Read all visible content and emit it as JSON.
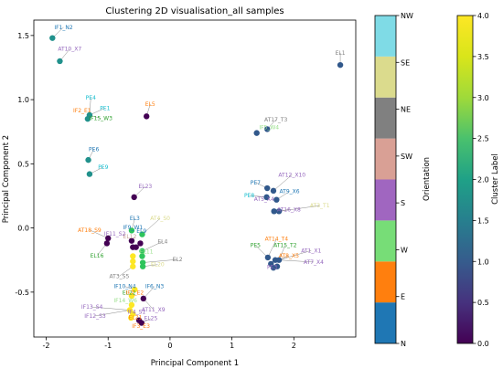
{
  "chart_data": {
    "type": "scatter",
    "title": "Clustering 2D visualisation_all samples",
    "xlabel": "Principal Component 1",
    "ylabel": "Principal Component 2",
    "xlim": [
      -2.2,
      3.0
    ],
    "ylim": [
      -0.85,
      1.62
    ],
    "xticks": [
      "-2",
      "-1",
      "0",
      "1",
      "2"
    ],
    "xtick_values": [
      -2,
      -1,
      0,
      1,
      2
    ],
    "yticks": [
      "-0.5",
      "0.0",
      "0.5",
      "1.0",
      "1.5"
    ],
    "ytick_values": [
      -0.5,
      0.0,
      0.5,
      1.0,
      1.5
    ],
    "grid": false,
    "points": [
      {
        "x": -1.9,
        "y": 1.48,
        "cluster": 2
      },
      {
        "x": -1.78,
        "y": 1.3,
        "cluster": 2
      },
      {
        "x": 2.75,
        "y": 1.27,
        "cluster": 1
      },
      {
        "x": -1.3,
        "y": 0.88,
        "cluster": 2
      },
      {
        "x": -1.33,
        "y": 0.85,
        "cluster": 2
      },
      {
        "x": -0.38,
        "y": 0.87,
        "cluster": 0
      },
      {
        "x": 1.4,
        "y": 0.74,
        "cluster": 1
      },
      {
        "x": 1.57,
        "y": 0.77,
        "cluster": 1
      },
      {
        "x": -1.32,
        "y": 0.53,
        "cluster": 2
      },
      {
        "x": -1.3,
        "y": 0.42,
        "cluster": 2
      },
      {
        "x": -0.58,
        "y": 0.24,
        "cluster": 0
      },
      {
        "x": 1.57,
        "y": 0.31,
        "cluster": 1
      },
      {
        "x": 1.67,
        "y": 0.29,
        "cluster": 1
      },
      {
        "x": 1.56,
        "y": 0.24,
        "cluster": 1
      },
      {
        "x": 1.72,
        "y": 0.22,
        "cluster": 1
      },
      {
        "x": 1.68,
        "y": 0.13,
        "cluster": 1
      },
      {
        "x": 1.76,
        "y": 0.13,
        "cluster": 1
      },
      {
        "x": -0.62,
        "y": -0.02,
        "cluster": 3
      },
      {
        "x": -0.45,
        "y": -0.05,
        "cluster": 3
      },
      {
        "x": -1.0,
        "y": -0.08,
        "cluster": 0
      },
      {
        "x": -1.02,
        "y": -0.12,
        "cluster": 0
      },
      {
        "x": -0.62,
        "y": -0.1,
        "cluster": 0
      },
      {
        "x": -0.6,
        "y": -0.15,
        "cluster": 0
      },
      {
        "x": -0.55,
        "y": -0.15,
        "cluster": 0
      },
      {
        "x": -0.48,
        "y": -0.12,
        "cluster": 0
      },
      {
        "x": -0.45,
        "y": -0.18,
        "cluster": 3
      },
      {
        "x": -0.6,
        "y": -0.22,
        "cluster": 4
      },
      {
        "x": -0.6,
        "y": -0.26,
        "cluster": 4
      },
      {
        "x": -0.6,
        "y": -0.3,
        "cluster": 4
      },
      {
        "x": -0.45,
        "y": -0.22,
        "cluster": 3
      },
      {
        "x": -0.44,
        "y": -0.27,
        "cluster": 3
      },
      {
        "x": -0.44,
        "y": -0.3,
        "cluster": 3
      },
      {
        "x": 1.58,
        "y": -0.23,
        "cluster": 1
      },
      {
        "x": 1.63,
        "y": -0.28,
        "cluster": 1
      },
      {
        "x": 1.7,
        "y": -0.25,
        "cluster": 1
      },
      {
        "x": 1.76,
        "y": -0.25,
        "cluster": 1
      },
      {
        "x": 1.67,
        "y": -0.31,
        "cluster": 1
      },
      {
        "x": 1.73,
        "y": -0.3,
        "cluster": 1
      },
      {
        "x": -0.57,
        "y": -0.48,
        "cluster": 4
      },
      {
        "x": -0.62,
        "y": -0.53,
        "cluster": 4
      },
      {
        "x": -0.62,
        "y": -0.6,
        "cluster": 4
      },
      {
        "x": -0.43,
        "y": -0.55,
        "cluster": 0
      },
      {
        "x": -0.65,
        "y": -0.64,
        "cluster": 4
      },
      {
        "x": -0.6,
        "y": -0.67,
        "cluster": 4
      },
      {
        "x": -0.63,
        "y": -0.7,
        "cluster": 4
      },
      {
        "x": -0.5,
        "y": -0.72,
        "cluster": 0
      },
      {
        "x": -0.46,
        "y": -0.74,
        "cluster": 0
      }
    ],
    "labels": [
      {
        "text": "IF1_N2",
        "x": -1.72,
        "y": 1.55,
        "color": "#1f77b4"
      },
      {
        "text": "AT10_X7",
        "x": -1.62,
        "y": 1.38,
        "color": "#9467bd"
      },
      {
        "text": "EL1",
        "x": 2.75,
        "y": 1.35,
        "color": "#7f7f7f"
      },
      {
        "text": "PE4",
        "x": -1.28,
        "y": 1.0,
        "color": "#17becf"
      },
      {
        "text": "PE1",
        "x": -1.05,
        "y": 0.92,
        "color": "#17becf"
      },
      {
        "text": "EL5",
        "x": -0.32,
        "y": 0.95,
        "color": "#ff7f0e"
      },
      {
        "text": "IF2_E1",
        "x": -1.42,
        "y": 0.9,
        "color": "#ff7f0e"
      },
      {
        "text": "IF15_W3",
        "x": -1.12,
        "y": 0.84,
        "color": "#2ca02c"
      },
      {
        "text": "AT17_T3",
        "x": 1.71,
        "y": 0.83,
        "color": "#7f7f7f"
      },
      {
        "text": "IF5_W4",
        "x": 1.6,
        "y": 0.77,
        "color": "#98df8a"
      },
      {
        "text": "PE6",
        "x": -1.23,
        "y": 0.6,
        "color": "#1f77b4"
      },
      {
        "text": "PE9",
        "x": -1.08,
        "y": 0.46,
        "color": "#17becf"
      },
      {
        "text": "EL23",
        "x": -0.4,
        "y": 0.31,
        "color": "#9467bd"
      },
      {
        "text": "AT12_X10",
        "x": 1.97,
        "y": 0.4,
        "color": "#9467bd"
      },
      {
        "text": "PE7",
        "x": 1.38,
        "y": 0.34,
        "color": "#1f77b4"
      },
      {
        "text": "AT9_X6",
        "x": 1.93,
        "y": 0.27,
        "color": "#1f77b4"
      },
      {
        "text": "PE8",
        "x": 1.28,
        "y": 0.24,
        "color": "#17becf"
      },
      {
        "text": "AT5_X4",
        "x": 1.52,
        "y": 0.21,
        "color": "#9467bd"
      },
      {
        "text": "AT16_X8",
        "x": 1.92,
        "y": 0.13,
        "color": "#9467bd"
      },
      {
        "text": "AT3_T1",
        "x": 2.42,
        "y": 0.16,
        "color": "#dbdb8d"
      },
      {
        "text": "EL3",
        "x": -0.57,
        "y": 0.06,
        "color": "#1f77b4"
      },
      {
        "text": "IF9_W1",
        "x": -0.6,
        "y": -0.01,
        "color": "#1f77b4"
      },
      {
        "text": "EL12",
        "x": -0.65,
        "y": -0.08,
        "color": "#c49c94"
      },
      {
        "text": "AT4_S0",
        "x": -0.16,
        "y": 0.06,
        "color": "#dbdb8d"
      },
      {
        "text": "EL9",
        "x": -0.46,
        "y": -0.04,
        "color": "#1f77b4"
      },
      {
        "text": "AT18_S9",
        "x": -1.3,
        "y": -0.03,
        "color": "#ff7f0e"
      },
      {
        "text": "IF11_S2",
        "x": -0.89,
        "y": -0.06,
        "color": "#9467bd"
      },
      {
        "text": "EL4",
        "x": -0.12,
        "y": -0.12,
        "color": "#7f7f7f"
      },
      {
        "text": "EL16",
        "x": -1.18,
        "y": -0.23,
        "color": "#2ca02c"
      },
      {
        "text": "EL11",
        "x": -0.38,
        "y": -0.2,
        "color": "#98df8a"
      },
      {
        "text": "EL2",
        "x": 0.12,
        "y": -0.26,
        "color": "#7f7f7f"
      },
      {
        "text": "EL20",
        "x": -0.2,
        "y": -0.3,
        "color": "#dbdb8d"
      },
      {
        "text": "AT14_T4",
        "x": 1.72,
        "y": -0.1,
        "color": "#ff7f0e"
      },
      {
        "text": "PE5",
        "x": 1.38,
        "y": -0.15,
        "color": "#2ca02c"
      },
      {
        "text": "AT15_T2",
        "x": 1.86,
        "y": -0.15,
        "color": "#2ca02c"
      },
      {
        "text": "AT1_X1",
        "x": 2.28,
        "y": -0.19,
        "color": "#9467bd"
      },
      {
        "text": "AT8_X5",
        "x": 1.92,
        "y": -0.23,
        "color": "#ff7f0e"
      },
      {
        "text": "AT7_X4",
        "x": 2.32,
        "y": -0.28,
        "color": "#9467bd"
      },
      {
        "text": "PE3",
        "x": 1.65,
        "y": -0.32,
        "color": "#9467bd"
      },
      {
        "text": "AT3_S5",
        "x": -0.82,
        "y": -0.39,
        "color": "#7f7f7f"
      },
      {
        "text": "IF10_N4",
        "x": -0.73,
        "y": -0.47,
        "color": "#1f77b4"
      },
      {
        "text": "IF6_N3",
        "x": -0.25,
        "y": -0.47,
        "color": "#1f77b4"
      },
      {
        "text": "EL22",
        "x": -0.66,
        "y": -0.52,
        "color": "#2ca02c"
      },
      {
        "text": "IF7_E2",
        "x": -0.57,
        "y": -0.52,
        "color": "#ff7f0e"
      },
      {
        "text": "IF14_W6",
        "x": -0.72,
        "y": -0.58,
        "color": "#98df8a"
      },
      {
        "text": "IF13_S4",
        "x": -1.26,
        "y": -0.63,
        "color": "#9467bd"
      },
      {
        "text": "AT11_X9",
        "x": -0.27,
        "y": -0.65,
        "color": "#9467bd"
      },
      {
        "text": "IF4_S1",
        "x": -0.54,
        "y": -0.67,
        "color": "#9467bd"
      },
      {
        "text": "IF12_S3",
        "x": -1.21,
        "y": -0.7,
        "color": "#9467bd"
      },
      {
        "text": "EL21",
        "x": -0.56,
        "y": -0.71,
        "color": "#ff7f0e"
      },
      {
        "text": "EL25",
        "x": -0.31,
        "y": -0.72,
        "color": "#9467bd"
      },
      {
        "text": "IF3_E3",
        "x": -0.47,
        "y": -0.78,
        "color": "#ff7f0e"
      }
    ],
    "orientation_colorbar": {
      "label": "Orientation",
      "categories": [
        "N",
        "E",
        "W",
        "S",
        "SW",
        "NE",
        "SE",
        "NW"
      ],
      "colors": [
        "#1f77b4",
        "#ff7f0e",
        "#77dd77",
        "#a066c0",
        "#d9a095",
        "#808080",
        "#dbdb8d",
        "#7fdbe6"
      ]
    },
    "cluster_colorbar": {
      "label": "Cluster Label",
      "range": [
        0.0,
        4.0
      ],
      "ticks": [
        "0.0",
        "0.5",
        "1.0",
        "1.5",
        "2.0",
        "2.5",
        "3.0",
        "3.5",
        "4.0"
      ],
      "tick_values": [
        0.0,
        0.5,
        1.0,
        1.5,
        2.0,
        2.5,
        3.0,
        3.5,
        4.0
      ]
    },
    "cluster_colors": [
      "#440154",
      "#31588b",
      "#21918c",
      "#2ec45c",
      "#fde725"
    ]
  }
}
